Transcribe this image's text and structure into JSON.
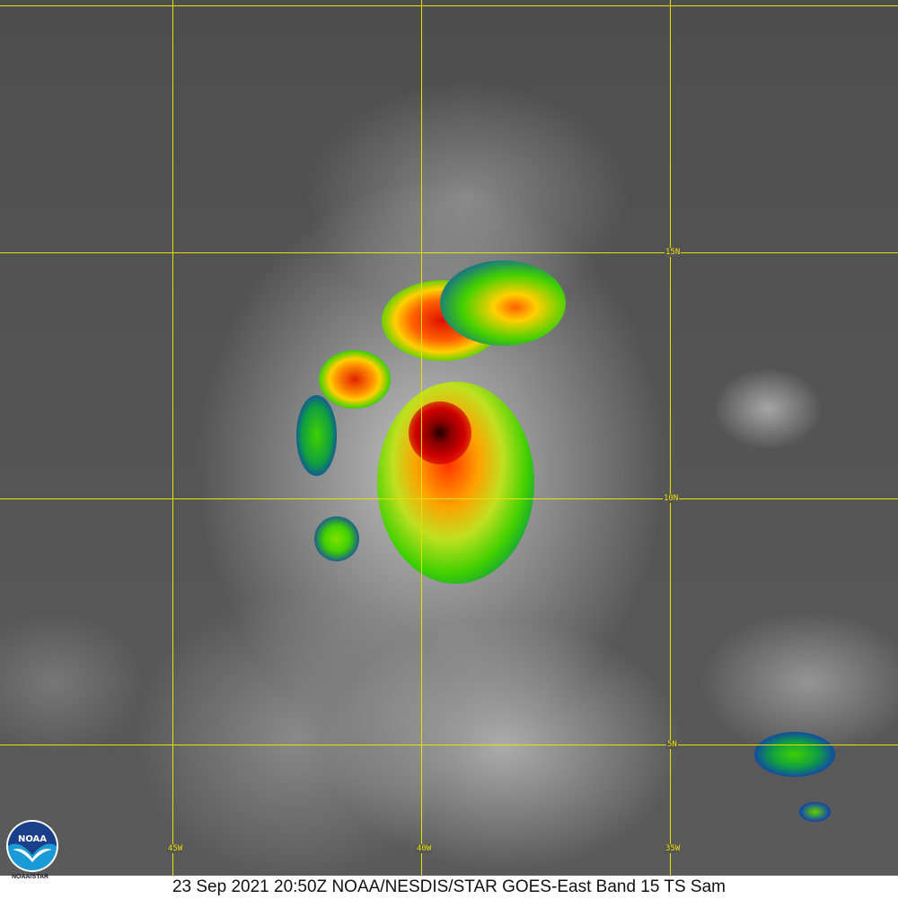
{
  "caption": "23 Sep 2021 20:50Z NOAA/NESDIS/STAR GOES-East Band 15 TS Sam",
  "logo": {
    "name": "NOAA",
    "subtext": "NOAA/STAR"
  },
  "grid": {
    "latitudes": [
      "15N",
      "10N",
      "5N"
    ],
    "longitudes": [
      "45W",
      "40W",
      "35W"
    ],
    "color": "#e8e000"
  },
  "colors": {
    "cloud_core": "#8b0000",
    "cold_tops": "#ff3000",
    "mid": "#ffd000",
    "warm": "#40d000",
    "edge": "#0030a0"
  }
}
